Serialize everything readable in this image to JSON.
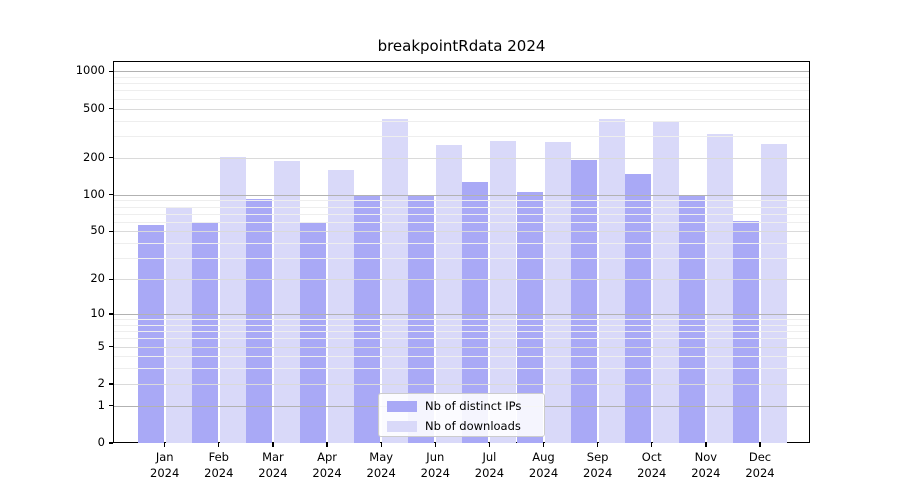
{
  "title": "breakpointRdata 2024",
  "chart_data": {
    "type": "bar",
    "title": "breakpointRdata 2024",
    "categories": [
      "Jan 2024",
      "Feb 2024",
      "Mar 2024",
      "Apr 2024",
      "May 2024",
      "Jun 2024",
      "Jul 2024",
      "Aug 2024",
      "Sep 2024",
      "Oct 2024",
      "Nov 2024",
      "Dec 2024"
    ],
    "series": [
      {
        "name": "Nb of distinct IPs",
        "color": "#a9a9f6",
        "values": [
          56,
          59,
          92,
          60,
          100,
          100,
          127,
          106,
          192,
          148,
          98,
          61
        ]
      },
      {
        "name": "Nb of downloads",
        "color": "#d9d9f9",
        "values": [
          78,
          203,
          188,
          158,
          408,
          255,
          275,
          268,
          410,
          390,
          312,
          258
        ]
      }
    ],
    "xlabel": "",
    "ylabel": "",
    "yscale": "log1p",
    "ylim": [
      0,
      1210
    ],
    "yticks_labeled": [
      0,
      1,
      2,
      5,
      10,
      20,
      50,
      100,
      200,
      500,
      1000
    ],
    "yticks_minor": [
      3,
      4,
      6,
      7,
      8,
      9,
      30,
      40,
      60,
      70,
      80,
      90,
      300,
      400,
      600,
      700,
      800,
      900
    ],
    "grid": true,
    "grid_over_bars": true,
    "legend_position": "lower center",
    "colors": {
      "grid_power10": "#b2b2b2",
      "grid_labeled": "#dadada",
      "grid_minor": "#eeeeee",
      "axis": "#000000",
      "text": "#000000"
    }
  }
}
